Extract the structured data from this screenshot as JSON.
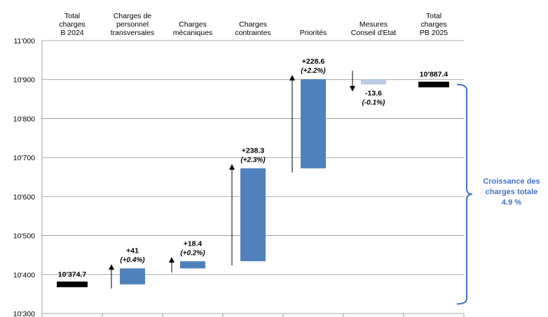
{
  "chart_data": {
    "type": "bar",
    "subtype": "waterfall",
    "categories": [
      [
        "Total",
        "charges",
        "B 2024"
      ],
      [
        "Charges de",
        "personnel",
        "transversales"
      ],
      [
        "Charges",
        "mécaniques"
      ],
      [
        "Charges",
        "contraintes"
      ],
      [
        "Priorités"
      ],
      [
        "Mesures",
        "Conseil d'Etat"
      ],
      [
        "Total",
        "charges",
        "PB 2025"
      ]
    ],
    "steps": [
      {
        "kind": "total",
        "value": 10374.7,
        "label": "10'374.7",
        "pct": ""
      },
      {
        "kind": "delta",
        "value": 41,
        "label": "+41",
        "pct": "(+0.4%)"
      },
      {
        "kind": "delta",
        "value": 18.4,
        "label": "+18.4",
        "pct": "(+0.2%)"
      },
      {
        "kind": "delta",
        "value": 238.3,
        "label": "+238.3",
        "pct": "(+2.3%)"
      },
      {
        "kind": "delta",
        "value": 228.6,
        "label": "+228.6",
        "pct": "(+2.2%)"
      },
      {
        "kind": "delta",
        "value": -13.6,
        "label": "-13.6",
        "pct": "(-0.1%)"
      },
      {
        "kind": "total",
        "value": 10887.4,
        "label": "10'887.4",
        "pct": ""
      }
    ],
    "ylim": [
      10300,
      11000
    ],
    "yticks": [
      10300,
      10400,
      10500,
      10600,
      10700,
      10800,
      10900,
      11000
    ],
    "ytick_labels": [
      "10'300",
      "10'400",
      "10'500",
      "10'600",
      "10'700",
      "10'800",
      "10'900",
      "11'000"
    ],
    "grid": true,
    "annotation": [
      "Croissance des",
      "charges totale",
      "4.9 %"
    ],
    "colors": {
      "total": "#000000",
      "increase": "#4F81BD",
      "decrease": "#B8CCE4",
      "grid": "#8C8C8C",
      "annotation": "#4472C4"
    }
  }
}
